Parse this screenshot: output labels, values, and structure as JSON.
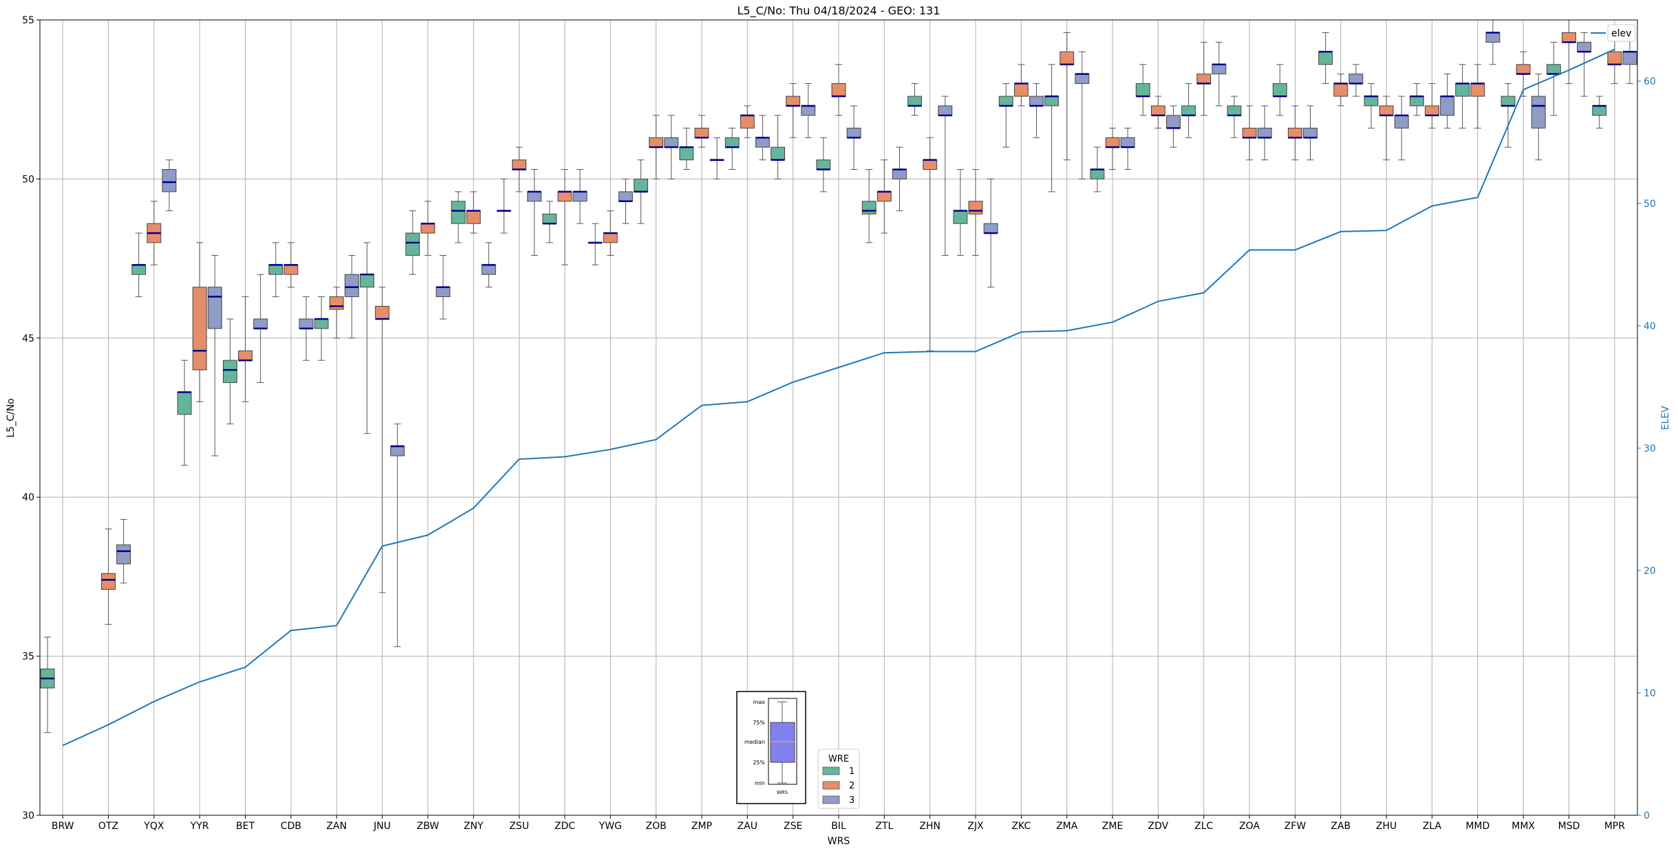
{
  "chart_data": {
    "type": "box",
    "title": "L5_C/No: Thu 04/18/2024 - GEO: 131",
    "xlabel": "WRS",
    "ylabel": "L5_C/No",
    "y2label": "ELEV",
    "ylim": [
      30,
      55
    ],
    "y2lim": [
      0,
      65
    ],
    "yticks": [
      30,
      35,
      40,
      45,
      50,
      55
    ],
    "y2ticks": [
      0,
      10,
      20,
      30,
      40,
      50,
      60
    ],
    "grid": true,
    "categories": [
      "BRW",
      "OTZ",
      "YQX",
      "YYR",
      "BET",
      "CDB",
      "ZAN",
      "JNU",
      "ZBW",
      "ZNY",
      "ZSU",
      "ZDC",
      "YWG",
      "ZOB",
      "ZMP",
      "ZAU",
      "ZSE",
      "BIL",
      "ZTL",
      "ZHN",
      "ZJX",
      "ZKC",
      "ZMA",
      "ZME",
      "ZDV",
      "ZLC",
      "ZOA",
      "ZFW",
      "ZAB",
      "ZHU",
      "ZLA",
      "MMD",
      "MMX",
      "MSD",
      "MPR"
    ],
    "colors": {
      "1": "#66b49c",
      "2": "#e68d6a",
      "3": "#8f9cc6",
      "median": "#00008b",
      "elev": "#1f77b4",
      "elev_axis": "#1f77b4",
      "grid": "#b0b0b0"
    },
    "legend_wre": {
      "title": "WRE",
      "entries": [
        "1",
        "2",
        "3"
      ],
      "placement": "bottom-center"
    },
    "legend_elev": {
      "label": "elev",
      "placement": "top-right"
    },
    "key": {
      "labels": [
        "max",
        "75%",
        "median",
        "25%",
        "min"
      ],
      "caption": "WRS"
    },
    "elev": [
      5.7,
      7.4,
      9.3,
      10.9,
      12.1,
      15.1,
      15.5,
      22.0,
      22.9,
      25.1,
      29.1,
      29.3,
      29.9,
      30.7,
      33.5,
      33.8,
      35.4,
      36.6,
      37.8,
      37.9,
      37.9,
      39.5,
      39.6,
      40.3,
      42.0,
      42.7,
      46.2,
      46.2,
      47.7,
      47.8,
      49.8,
      50.5,
      59.3,
      60.9,
      62.6
    ],
    "boxes": [
      [
        [
          1,
          32.6,
          34.0,
          34.3,
          34.6,
          35.6
        ]
      ],
      [
        [
          2,
          36.0,
          37.1,
          37.4,
          37.6,
          39.0
        ],
        [
          3,
          37.3,
          37.9,
          38.3,
          38.5,
          39.3
        ]
      ],
      [
        [
          1,
          46.3,
          47.0,
          47.3,
          47.3,
          48.3
        ],
        [
          2,
          47.3,
          48.0,
          48.3,
          48.6,
          49.3
        ],
        [
          3,
          49.0,
          49.6,
          49.9,
          50.3,
          50.6
        ]
      ],
      [
        [
          1,
          41.0,
          42.6,
          43.3,
          43.3,
          44.3
        ],
        [
          2,
          43.0,
          44.0,
          44.6,
          46.6,
          48.0
        ],
        [
          3,
          41.3,
          45.3,
          46.3,
          46.6,
          47.6
        ]
      ],
      [
        [
          1,
          42.3,
          43.6,
          44.0,
          44.3,
          45.6
        ],
        [
          2,
          43.0,
          44.3,
          44.3,
          44.6,
          46.3
        ],
        [
          3,
          43.6,
          45.3,
          45.3,
          45.6,
          47.0
        ]
      ],
      [
        [
          1,
          46.3,
          47.0,
          47.3,
          47.3,
          48.0
        ],
        [
          2,
          46.6,
          47.0,
          47.3,
          47.3,
          48.0
        ],
        [
          3,
          44.3,
          45.3,
          45.3,
          45.6,
          46.3
        ]
      ],
      [
        [
          1,
          44.3,
          45.3,
          45.6,
          45.6,
          46.3
        ],
        [
          2,
          45.0,
          45.9,
          46.0,
          46.3,
          46.6
        ],
        [
          3,
          45.0,
          46.3,
          46.6,
          47.0,
          47.6
        ]
      ],
      [
        [
          1,
          42.0,
          46.6,
          47.0,
          47.0,
          48.0
        ],
        [
          2,
          37.0,
          45.6,
          45.6,
          46.0,
          46.6
        ],
        [
          3,
          35.3,
          41.3,
          41.6,
          41.6,
          42.3
        ]
      ],
      [
        [
          1,
          47.0,
          47.6,
          48.0,
          48.3,
          49.0
        ],
        [
          2,
          47.6,
          48.3,
          48.6,
          48.6,
          49.3
        ],
        [
          3,
          45.6,
          46.3,
          46.6,
          46.6,
          47.6
        ]
      ],
      [
        [
          1,
          48.0,
          48.6,
          49.0,
          49.3,
          49.6
        ],
        [
          2,
          48.3,
          48.6,
          49.0,
          49.0,
          49.6
        ],
        [
          3,
          46.6,
          47.0,
          47.3,
          47.3,
          48.0
        ]
      ],
      [
        [
          1,
          48.3,
          49.0,
          49.0,
          49.0,
          50.0
        ],
        [
          2,
          49.6,
          50.3,
          50.3,
          50.6,
          51.0
        ],
        [
          3,
          47.6,
          49.3,
          49.6,
          49.6,
          50.3
        ]
      ],
      [
        [
          1,
          48.0,
          48.6,
          48.6,
          48.9,
          49.3
        ],
        [
          2,
          47.3,
          49.3,
          49.6,
          49.6,
          50.3
        ],
        [
          3,
          48.6,
          49.3,
          49.6,
          49.6,
          50.3
        ]
      ],
      [
        [
          1,
          47.3,
          48.0,
          48.0,
          48.0,
          48.6
        ],
        [
          2,
          47.6,
          48.0,
          48.3,
          48.3,
          49.0
        ],
        [
          3,
          48.6,
          49.3,
          49.3,
          49.6,
          50.0
        ]
      ],
      [
        [
          1,
          48.6,
          49.6,
          49.6,
          50.0,
          50.6
        ],
        [
          2,
          50.0,
          51.0,
          51.0,
          51.3,
          52.0
        ],
        [
          3,
          50.0,
          51.0,
          51.0,
          51.3,
          52.0
        ]
      ],
      [
        [
          1,
          50.3,
          50.6,
          51.0,
          51.0,
          51.6
        ],
        [
          2,
          51.0,
          51.3,
          51.3,
          51.6,
          52.0
        ],
        [
          3,
          50.0,
          50.6,
          50.6,
          50.6,
          51.3
        ]
      ],
      [
        [
          1,
          50.3,
          51.0,
          51.0,
          51.3,
          51.6
        ],
        [
          2,
          51.3,
          51.6,
          52.0,
          52.0,
          52.3
        ],
        [
          3,
          50.6,
          51.0,
          51.3,
          51.3,
          52.0
        ]
      ],
      [
        [
          1,
          50.0,
          50.6,
          50.6,
          51.0,
          52.0
        ],
        [
          2,
          51.3,
          52.3,
          52.3,
          52.6,
          53.0
        ],
        [
          3,
          51.3,
          52.0,
          52.3,
          52.3,
          53.0
        ]
      ],
      [
        [
          1,
          49.6,
          50.3,
          50.3,
          50.6,
          51.3
        ],
        [
          2,
          52.0,
          52.6,
          52.6,
          53.0,
          53.6
        ],
        [
          3,
          50.3,
          51.3,
          51.3,
          51.6,
          52.3
        ]
      ],
      [
        [
          1,
          48.0,
          48.9,
          49.0,
          49.3,
          50.3
        ],
        [
          2,
          48.3,
          49.3,
          49.6,
          49.6,
          50.6
        ],
        [
          3,
          49.0,
          50.0,
          50.3,
          50.3,
          51.0
        ]
      ],
      [
        [
          1,
          52.0,
          52.3,
          52.3,
          52.6,
          53.0
        ],
        [
          2,
          44.6,
          50.3,
          50.6,
          50.6,
          51.3
        ],
        [
          3,
          47.6,
          52.0,
          52.0,
          52.3,
          52.6
        ]
      ],
      [
        [
          1,
          47.6,
          48.6,
          49.0,
          49.0,
          50.3
        ],
        [
          2,
          47.6,
          48.9,
          49.0,
          49.3,
          50.3
        ],
        [
          3,
          46.6,
          48.3,
          48.3,
          48.6,
          50.0
        ]
      ],
      [
        [
          1,
          51.0,
          52.3,
          52.3,
          52.6,
          53.0
        ],
        [
          2,
          52.3,
          52.6,
          53.0,
          53.0,
          53.6
        ],
        [
          3,
          51.3,
          52.3,
          52.3,
          52.6,
          53.0
        ]
      ],
      [
        [
          1,
          49.6,
          52.3,
          52.6,
          52.6,
          53.6
        ],
        [
          2,
          50.6,
          53.6,
          53.6,
          54.0,
          54.6
        ],
        [
          3,
          50.0,
          53.0,
          53.3,
          53.3,
          54.0
        ]
      ],
      [
        [
          1,
          49.6,
          50.0,
          50.3,
          50.3,
          51.0
        ],
        [
          2,
          50.3,
          51.0,
          51.0,
          51.3,
          51.6
        ],
        [
          3,
          50.3,
          51.0,
          51.0,
          51.3,
          51.6
        ]
      ],
      [
        [
          1,
          52.0,
          52.6,
          52.6,
          53.0,
          53.6
        ],
        [
          2,
          51.6,
          52.0,
          52.0,
          52.3,
          52.6
        ],
        [
          3,
          51.0,
          51.6,
          51.6,
          52.0,
          52.3
        ]
      ],
      [
        [
          1,
          51.3,
          52.0,
          52.0,
          52.3,
          53.0
        ],
        [
          2,
          52.0,
          53.0,
          53.0,
          53.3,
          54.3
        ],
        [
          3,
          52.3,
          53.3,
          53.6,
          53.6,
          54.3
        ]
      ],
      [
        [
          1,
          51.3,
          52.0,
          52.0,
          52.3,
          52.6
        ],
        [
          2,
          50.6,
          51.3,
          51.3,
          51.6,
          52.3
        ],
        [
          3,
          50.6,
          51.3,
          51.3,
          51.6,
          52.3
        ]
      ],
      [
        [
          1,
          52.0,
          52.6,
          52.6,
          53.0,
          53.6
        ],
        [
          2,
          50.6,
          51.3,
          51.3,
          51.6,
          52.3
        ],
        [
          3,
          50.6,
          51.3,
          51.3,
          51.6,
          52.3
        ]
      ],
      [
        [
          1,
          53.0,
          53.6,
          54.0,
          54.0,
          54.6
        ],
        [
          2,
          52.3,
          52.6,
          53.0,
          53.0,
          53.3
        ],
        [
          3,
          52.6,
          53.0,
          53.0,
          53.3,
          53.6
        ]
      ],
      [
        [
          1,
          51.6,
          52.3,
          52.6,
          52.6,
          53.0
        ],
        [
          2,
          50.6,
          52.0,
          52.0,
          52.3,
          52.6
        ],
        [
          3,
          50.6,
          51.6,
          52.0,
          52.0,
          52.6
        ]
      ],
      [
        [
          1,
          52.0,
          52.3,
          52.6,
          52.6,
          53.0
        ],
        [
          2,
          51.6,
          52.0,
          52.0,
          52.3,
          53.0
        ],
        [
          3,
          51.6,
          52.0,
          52.6,
          52.6,
          53.3
        ]
      ],
      [
        [
          1,
          51.6,
          52.6,
          53.0,
          53.0,
          53.6
        ],
        [
          2,
          51.6,
          52.6,
          53.0,
          53.0,
          53.6
        ],
        [
          3,
          53.6,
          54.3,
          54.6,
          54.6,
          55.0
        ]
      ],
      [
        [
          1,
          51.0,
          52.3,
          52.3,
          52.6,
          53.0
        ],
        [
          2,
          52.6,
          53.3,
          53.3,
          53.6,
          54.0
        ],
        [
          3,
          50.6,
          51.6,
          52.3,
          52.6,
          53.3
        ]
      ],
      [
        [
          1,
          52.0,
          53.3,
          53.3,
          53.6,
          54.3
        ],
        [
          2,
          53.0,
          54.3,
          54.3,
          54.6,
          55.0
        ],
        [
          3,
          52.6,
          54.0,
          54.0,
          54.3,
          54.6
        ]
      ],
      [
        [
          1,
          51.6,
          52.0,
          52.3,
          52.3,
          52.6
        ],
        [
          2,
          53.0,
          53.6,
          53.6,
          54.0,
          54.6
        ],
        [
          3,
          53.0,
          53.6,
          54.0,
          54.0,
          54.6
        ]
      ]
    ]
  }
}
